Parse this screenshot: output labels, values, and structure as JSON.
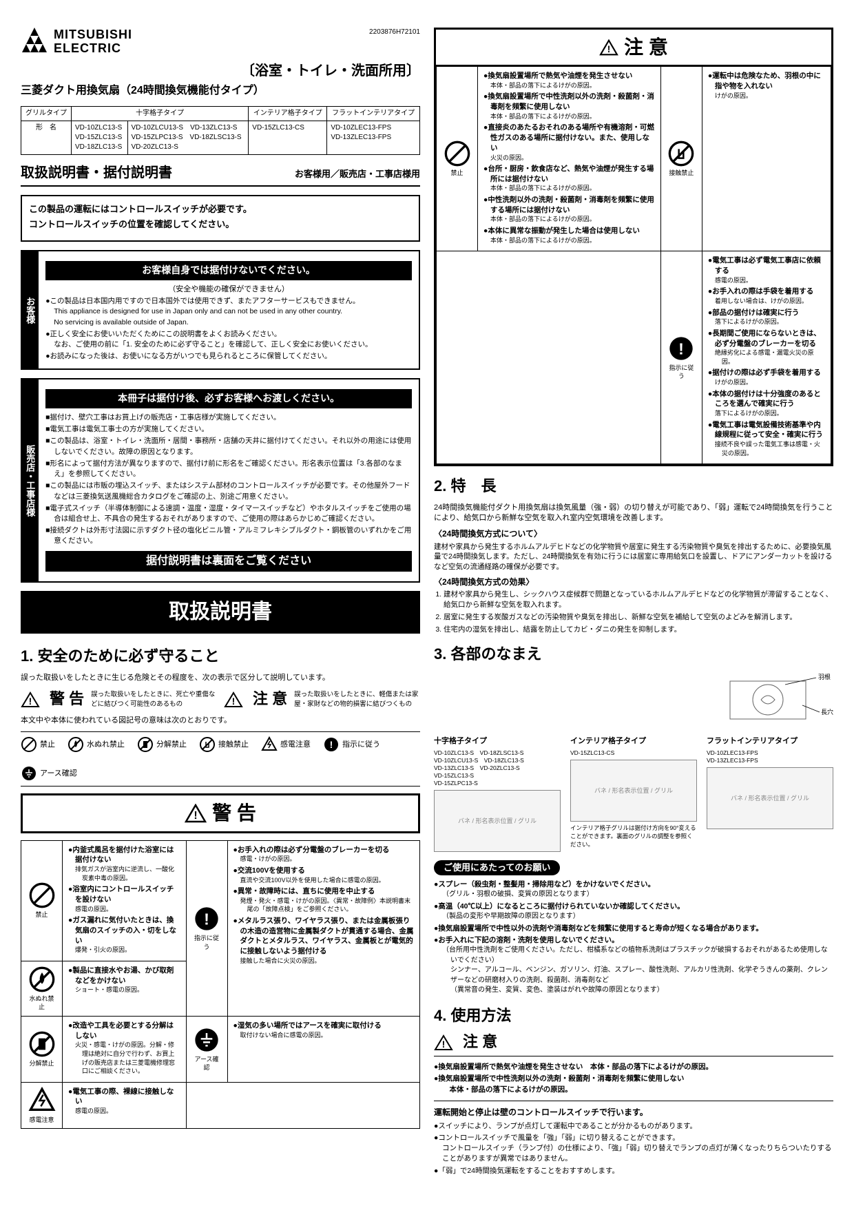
{
  "doc_number": "2203876H72101",
  "brand": {
    "name": "MITSUBISHI",
    "sub": "ELECTRIC"
  },
  "usage_title": "〔浴室・トイレ・洗面所用〕",
  "product_name": "三菱ダクト用換気扇（24時間換気機能付タイプ）",
  "model_table": {
    "headers": [
      "グリルタイプ",
      "十字格子タイプ",
      "インテリア格子タイプ",
      "フラットインテリアタイプ"
    ],
    "row_label": "形　名",
    "col1": "VD-10ZLC13-S\nVD-15ZLC13-S\nVD-18ZLC13-S",
    "col2": "VD-10ZLCU13-S　VD-13ZLC13-S\nVD-15ZLPC13-S　VD-18ZLSC13-S\nVD-20ZLC13-S",
    "col3": "VD-15ZLC13-CS",
    "col4": "VD-10ZLEC13-FPS\nVD-13ZLEC13-FPS"
  },
  "doc_title": "取扱説明書・据付説明書",
  "doc_audience": "お客様用／販売店・工事店様用",
  "notice1_l1": "この製品の運転にはコントロールスイッチが必要です。",
  "notice1_l2": "コントロールスイッチの位置を確認してください。",
  "customer_block": {
    "tab": "お客様",
    "bar": "お客様自身では据付けないでください。",
    "bar_sub": "（安全や機能の確保ができません）",
    "b1": "●この製品は日本国内用ですので日本国外では使用できず、またアフターサービスもできません。\nThis appliance is designed for use in Japan only and can not be used in any other country.\nNo servicing is available outside of Japan.",
    "b2": "●正しく安全にお使いいただくためにこの説明書をよくお読みください。\nなお、ご使用の前に「1. 安全のために必ず守ること」を確認して、正しく安全にお使いください。",
    "b3": "●お読みになった後は、お使いになる方がいつでも見られるところに保管してください。"
  },
  "dealer_block": {
    "tab": "販売店・工事店様",
    "bar": "本冊子は据付け後、必ずお客様へお渡しください。",
    "items": [
      "■据付け、壁穴工事はお買上げの販売店・工事店様が実施してください。",
      "■電気工事は電気工事士の方が実施してください。",
      "■この製品は、浴室・トイレ・洗面所・居間・事務所・店舗の天井に据付けてください。それ以外の用途には使用しないでください。故障の原因となります。",
      "■形名によって据付方法が異なりますので、据付け前に形名をご確認ください。形名表示位置は「3.各部のなまえ」を参照してください。",
      "■この製品には市販の埋込スイッチ、またはシステム部材のコントロールスイッチが必要です。その他屋外フードなどは三菱換気送風機総合カタログをご確認の上、別途ご用意ください。",
      "■電子式スイッチ（半導体制御による速調・温度・湿度・タイマースイッチなど）やホタルスイッチをご使用の場合は組合せ上、不具合の発生するおそれがありますので、ご使用の際はあらかじめご確認ください。",
      "■接続ダクトは外形寸法図に示すダクト径の塩化ビニル管・アルミフレキシブルダクト・鋼板管のいずれかをご用意ください。"
    ],
    "bar2": "据付説明書は裏面をご覧ください"
  },
  "manual_title": "取扱説明書",
  "s1": {
    "h": "1. 安全のために必ず守ること",
    "intro": "誤った取扱いをしたときに生じる危険とその程度を、次の表示で区分して説明しています。",
    "warn": "警 告",
    "warn_desc": "誤った取扱いをしたときに、死亡や重傷などに結びつく可能性のあるもの",
    "caution": "注 意",
    "caution_desc": "誤った取扱いをしたときに、軽傷または家屋・家財などの物的損害に結びつくもの",
    "legend_intro": "本文中や本体に使われている図記号の意味は次のとおりです。",
    "legend": [
      "禁止",
      "水ぬれ禁止",
      "分解禁止",
      "接触禁止",
      "感電注意",
      "指示に従う",
      "アース確認"
    ]
  },
  "warn_table": {
    "left": [
      {
        "icon": "prohibit",
        "label": "禁止",
        "items": [
          {
            "t": "●内釜式風呂を据付けた浴室には据付けない",
            "s": "排気ガスが浴室内に逆流し、一酸化炭素中毒の原因。"
          },
          {
            "t": "●浴室内にコントロールスイッチを設けない",
            "s": "感電の原因。"
          },
          {
            "t": "●ガス漏れに気付いたときは、換気扇のスイッチの入・切をしない",
            "s": "爆発・引火の原因。"
          }
        ]
      },
      {
        "icon": "water",
        "label": "水ぬれ禁止",
        "items": [
          {
            "t": "●製品に直接水やお湯、かび取剤などをかけない",
            "s": "ショート・感電の原因。"
          }
        ]
      },
      {
        "icon": "disassemble",
        "label": "分解禁止",
        "items": [
          {
            "t": "●改造や工具を必要とする分解はしない",
            "s": "火災・感電・けがの原因。分解・修理は絶対に自分で行わず、お買上げの販売店または三菱電機修理窓口にご相談ください。"
          }
        ]
      },
      {
        "icon": "shock",
        "label": "感電注意",
        "items": [
          {
            "t": "●電気工事の際、裸線に接触しない",
            "s": "感電の原因。"
          }
        ]
      }
    ],
    "right": [
      {
        "icon": "follow",
        "label": "指示に従う",
        "items": [
          {
            "t": "●お手入れの際は必ず分電盤のブレーカーを切る",
            "s": "感電・けがの原因。"
          },
          {
            "t": "●交流100Vを使用する",
            "s": "直流や交流100V以外を使用した場合に感電の原因。"
          },
          {
            "t": "●異常・故障時には、直ちに使用を中止する",
            "s": "発煙・発火・感電・けがの原因。〈異常・故障例〉本説明書末尾の「故障点検」をご参照ください。"
          },
          {
            "t": "●メタルラス張り、ワイヤラス張り、または金属板張りの木造の造営物に金属製ダクトが貫通する場合、金属ダクトとメタルラス、ワイヤラス、金属板とが電気的に接触しないよう据付ける",
            "s": "接触した場合に火災の原因。"
          }
        ]
      },
      {
        "icon": "ground",
        "label": "アース確認",
        "items": [
          {
            "t": "●湿気の多い場所ではアースを確実に取付ける",
            "s": "取付けない場合に感電の原因。"
          }
        ]
      }
    ]
  },
  "caution_table": {
    "head": "注 意",
    "left": [
      {
        "icon": "prohibit",
        "label": "禁止",
        "items": [
          {
            "t": "●換気扇設置場所で熱気や油煙を発生させない",
            "s": "本体・部品の落下によるけがの原因。"
          },
          {
            "t": "●換気扇設置場所で中性洗剤以外の洗剤・殺菌剤・消毒剤を頻繁に使用しない",
            "s": "本体・部品の落下によるけがの原因。"
          },
          {
            "t": "●直接炎のあたるおそれのある場所や有機溶剤・可燃性ガスのある場所に据付けない。また、使用しない",
            "s": "火災の原因。"
          },
          {
            "t": "●台所・厨房・飲食店など、熱気や油煙が発生する場所には据付けない",
            "s": "本体・部品の落下によるけがの原因。"
          },
          {
            "t": "●中性洗剤以外の洗剤・殺菌剤・消毒剤を頻繁に使用する場所には据付けない",
            "s": "本体・部品の落下によるけがの原因。"
          },
          {
            "t": "●本体に異常な振動が発生した場合は使用しない",
            "s": "本体・部品の落下によるけがの原因。"
          }
        ]
      }
    ],
    "right": [
      {
        "icon": "touch",
        "label": "接触禁止",
        "items": [
          {
            "t": "●運転中は危険なため、羽根の中に指や物を入れない",
            "s": "けがの原因。"
          }
        ]
      },
      {
        "icon": "follow",
        "label": "指示に従う",
        "items": [
          {
            "t": "●電気工事は必ず電気工事店に依頼する",
            "s": "感電の原因。"
          },
          {
            "t": "●お手入れの際は手袋を着用する",
            "s": "着用しない場合は、けがの原因。"
          },
          {
            "t": "●部品の据付けは確実に行う",
            "s": "落下によるけがの原因。"
          },
          {
            "t": "●長期間ご使用にならないときは、必ず分電盤のブレーカーを切る",
            "s": "絶縁劣化による感電・漏電火災の原因。"
          },
          {
            "t": "●据付けの際は必ず手袋を着用する",
            "s": "けがの原因。"
          },
          {
            "t": "●本体の据付けは十分強度のあるところを選んで確実に行う",
            "s": "落下によるけがの原因。"
          },
          {
            "t": "●電気工事は電気設備技術基準や内線規程に従って安全・確実に行う",
            "s": "接続不良や誤った電気工事は感電・火災の原因。"
          }
        ]
      }
    ]
  },
  "s2": {
    "h": "2. 特　長",
    "p1": "24時間換気機能付ダクト用換気扇は換気風量（強・弱）の切り替えが可能であり、「弱」運転で24時間換気を行うことにより、給気口から新鮮な空気を取入れ室内空気環境を改善します。",
    "sub1": "〈24時間換気方式について〉",
    "sub1_body": "建材や家具から発生するホルムアルデヒドなどの化学物質や居室に発生する汚染物質や臭気を排出するために、必要換気風量で24時間換気します。ただし、24時間換気を有効に行うには居室に専用給気口を設置し、ドアにアンダーカットを設けるなど空気の流通経路の確保が必要です。",
    "sub2": "〈24時間換気方式の効果〉",
    "effects": [
      "建材や家具から発生し、シックハウス症候群で問題となっているホルムアルデヒドなどの化学物質が滞留することなく、給気口から新鮮な空気を取入れます。",
      "居室に発生する炭酸ガスなどの汚染物質や臭気を排出し、新鮮な空気を補給して空気のよどみを解消します。",
      "住宅内の湿気を排出し、結露を防止してカビ・ダニの発生を抑制します。"
    ]
  },
  "s3": {
    "h": "3. 各部のなまえ",
    "diagram_labels": [
      "羽根",
      "長穴"
    ],
    "parts": [
      {
        "title": "十字格子タイプ",
        "models": "VD-10ZLC13-S　VD-18ZLSC13-S\nVD-10ZLCU13-S　VD-18ZLC13-S\nVD-13ZLC13-S　VD-20ZLC13-S\nVD-15ZLC13-S\nVD-15ZLPC13-S",
        "labels": [
          "バネ",
          "形名表示位置",
          "グリル"
        ]
      },
      {
        "title": "インテリア格子タイプ",
        "models": "VD-15ZLC13-CS",
        "labels": [
          "バネ",
          "形名表示位置",
          "グリル"
        ],
        "note": "インテリア格子グリルは据付け方向を90°変えることができます。裏面のグリルの調整を参照ください。"
      },
      {
        "title": "フラットインテリアタイプ",
        "models": "VD-10ZLEC13-FPS\nVD-13ZLEC13-FPS",
        "labels": [
          "バネ",
          "形名表示位置",
          "グリル"
        ]
      }
    ]
  },
  "usage_notice": {
    "pill": "ご使用にあたってのお願い",
    "items": [
      {
        "t": "●スプレー（殺虫剤・整髪用・掃除用など）をかけないでください。",
        "s": "（グリル・羽根の破損、変質の原因となります）"
      },
      {
        "t": "●高温（40℃以上）になるところに据付けられていないか確認してください。",
        "s": "（製品の変形や早期故障の原因となります）"
      },
      {
        "t": "●換気扇設置場所で中性以外の洗剤や消毒剤などを頻繁に使用すると寿命が短くなる場合があります。"
      },
      {
        "t": "●お手入れに下記の溶剤・洗剤を使用しないでください。",
        "s": "（台所用中性洗剤をご使用ください。ただし、柑橘系などの植物系洗剤はプラスチックが破損するおそれがあるため使用しないでください）\nシンナー、アルコール、ベンジン、ガソリン、灯油、スプレー、酸性洗剤、アルカリ性洗剤、化学ぞうきんの薬剤、クレンザーなどの研磨材入りの洗剤、殺菌剤、消毒剤など\n（異常音の発生、変質、変色、塗装はがれや故障の原因となります）"
      }
    ]
  },
  "s4": {
    "h": "4. 使用方法",
    "caution": "注 意",
    "c_items": [
      "●換気扇設置場所で熱気や油煙を発生させない　本体・部品の落下によるけがの原因。",
      "●換気扇設置場所で中性洗剤以外の洗剤・殺菌剤・消毒剤を頻繁に使用しない\n　本体・部品の落下によるけがの原因。"
    ],
    "op_head": "運転開始と停止は壁のコントロールスイッチで行います。",
    "ops": [
      "●スイッチにより、ランプが点灯して運転中であることが分かるものがあります。",
      "●コントロールスイッチで風量を「強」「弱」に切り替えることができます。\nコントロールスイッチ（ランプ付）の仕様により、「強」「弱」切り替えでランプの点灯が薄くなったりちらついたりすることがありますが異常ではありません。",
      "●「弱」で24時間換気運転をすることをおすすめします。"
    ]
  }
}
